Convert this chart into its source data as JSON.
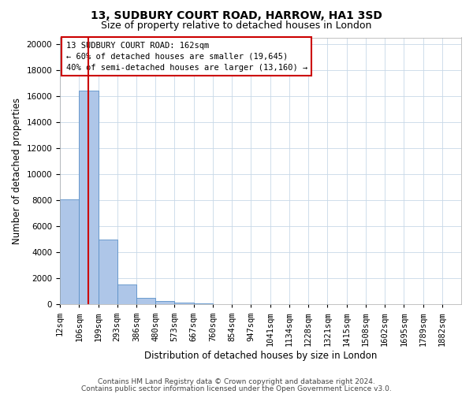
{
  "title": "13, SUDBURY COURT ROAD, HARROW, HA1 3SD",
  "subtitle": "Size of property relative to detached houses in London",
  "xlabel": "Distribution of detached houses by size in London",
  "ylabel": "Number of detached properties",
  "footer_line1": "Contains HM Land Registry data © Crown copyright and database right 2024.",
  "footer_line2": "Contains public sector information licensed under the Open Government Licence v3.0.",
  "property_label": "13 SUDBURY COURT ROAD: 162sqm",
  "annotation_line1": "← 60% of detached houses are smaller (19,645)",
  "annotation_line2": "40% of semi-detached houses are larger (13,160) →",
  "bar_categories": [
    "12sqm",
    "106sqm",
    "199sqm",
    "293sqm",
    "386sqm",
    "480sqm",
    "573sqm",
    "667sqm",
    "760sqm",
    "854sqm",
    "947sqm",
    "1041sqm",
    "1134sqm",
    "1228sqm",
    "1321sqm",
    "1415sqm",
    "1508sqm",
    "1602sqm",
    "1695sqm",
    "1789sqm",
    "1882sqm"
  ],
  "bar_heights": [
    8050,
    16400,
    5000,
    1550,
    500,
    230,
    140,
    90,
    0,
    0,
    0,
    0,
    0,
    0,
    0,
    0,
    0,
    0,
    0,
    0,
    0
  ],
  "bar_color": "#aec6e8",
  "bar_edge_color": "#5a90c8",
  "vline_bar_index": 1.5,
  "vline_color": "#cc0000",
  "annotation_box_color": "#cc0000",
  "ylim": [
    0,
    20500
  ],
  "yticks": [
    0,
    2000,
    4000,
    6000,
    8000,
    10000,
    12000,
    14000,
    16000,
    18000,
    20000
  ],
  "bg_color": "#ffffff",
  "grid_color": "#c8d8e8",
  "title_fontsize": 10,
  "subtitle_fontsize": 9,
  "axis_label_fontsize": 8.5,
  "tick_fontsize": 7.5,
  "annotation_fontsize": 7.5,
  "footer_fontsize": 6.5
}
